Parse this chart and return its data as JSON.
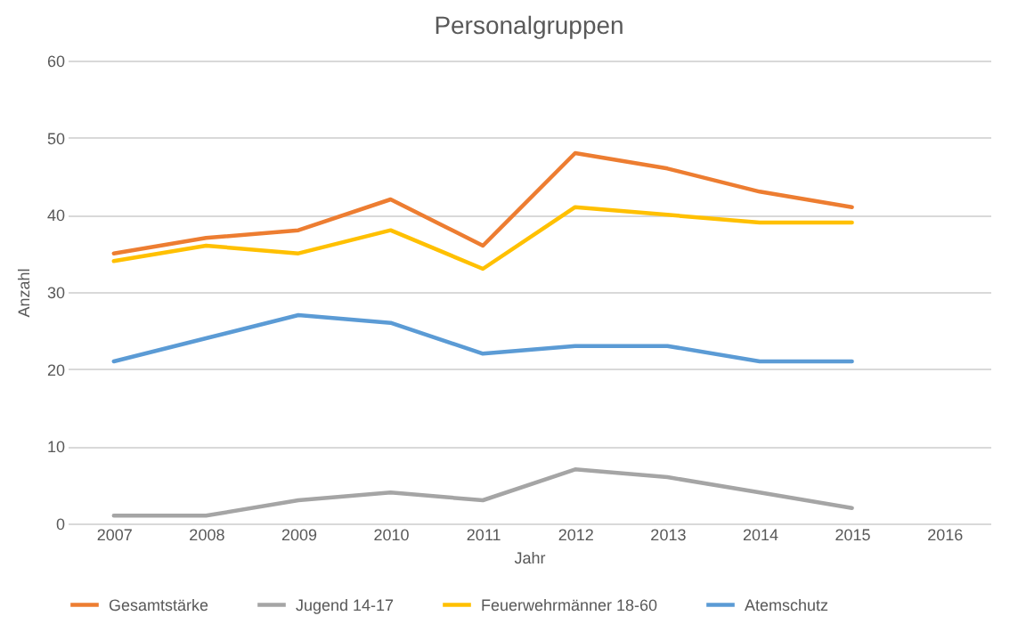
{
  "chart_data": {
    "type": "line",
    "title": "Personalgruppen",
    "xlabel": "Jahr",
    "ylabel": "Anzahl",
    "categories": [
      "2007",
      "2008",
      "2009",
      "2010",
      "2011",
      "2012",
      "2013",
      "2014",
      "2015",
      "2016"
    ],
    "series": [
      {
        "name": "Gesamtstärke",
        "color": "#ed7d31",
        "values": [
          35,
          37,
          38,
          42,
          36,
          48,
          46,
          43,
          41,
          null
        ]
      },
      {
        "name": "Jugend 14-17",
        "color": "#a5a5a5",
        "values": [
          1,
          1,
          3,
          4,
          3,
          7,
          6,
          4,
          2,
          null
        ]
      },
      {
        "name": "Feuerwehrmänner 18-60",
        "color": "#ffc000",
        "values": [
          34,
          36,
          35,
          38,
          33,
          41,
          40,
          39,
          39,
          null
        ]
      },
      {
        "name": "Atemschutz",
        "color": "#5b9bd5",
        "values": [
          21,
          24,
          27,
          26,
          22,
          23,
          23,
          21,
          21,
          null
        ]
      }
    ],
    "ylim": [
      0,
      60
    ],
    "yticks": [
      0,
      10,
      20,
      30,
      40,
      50,
      60
    ],
    "grid": "y",
    "legend": "bottom",
    "line_style": "solid",
    "marker": "none"
  }
}
